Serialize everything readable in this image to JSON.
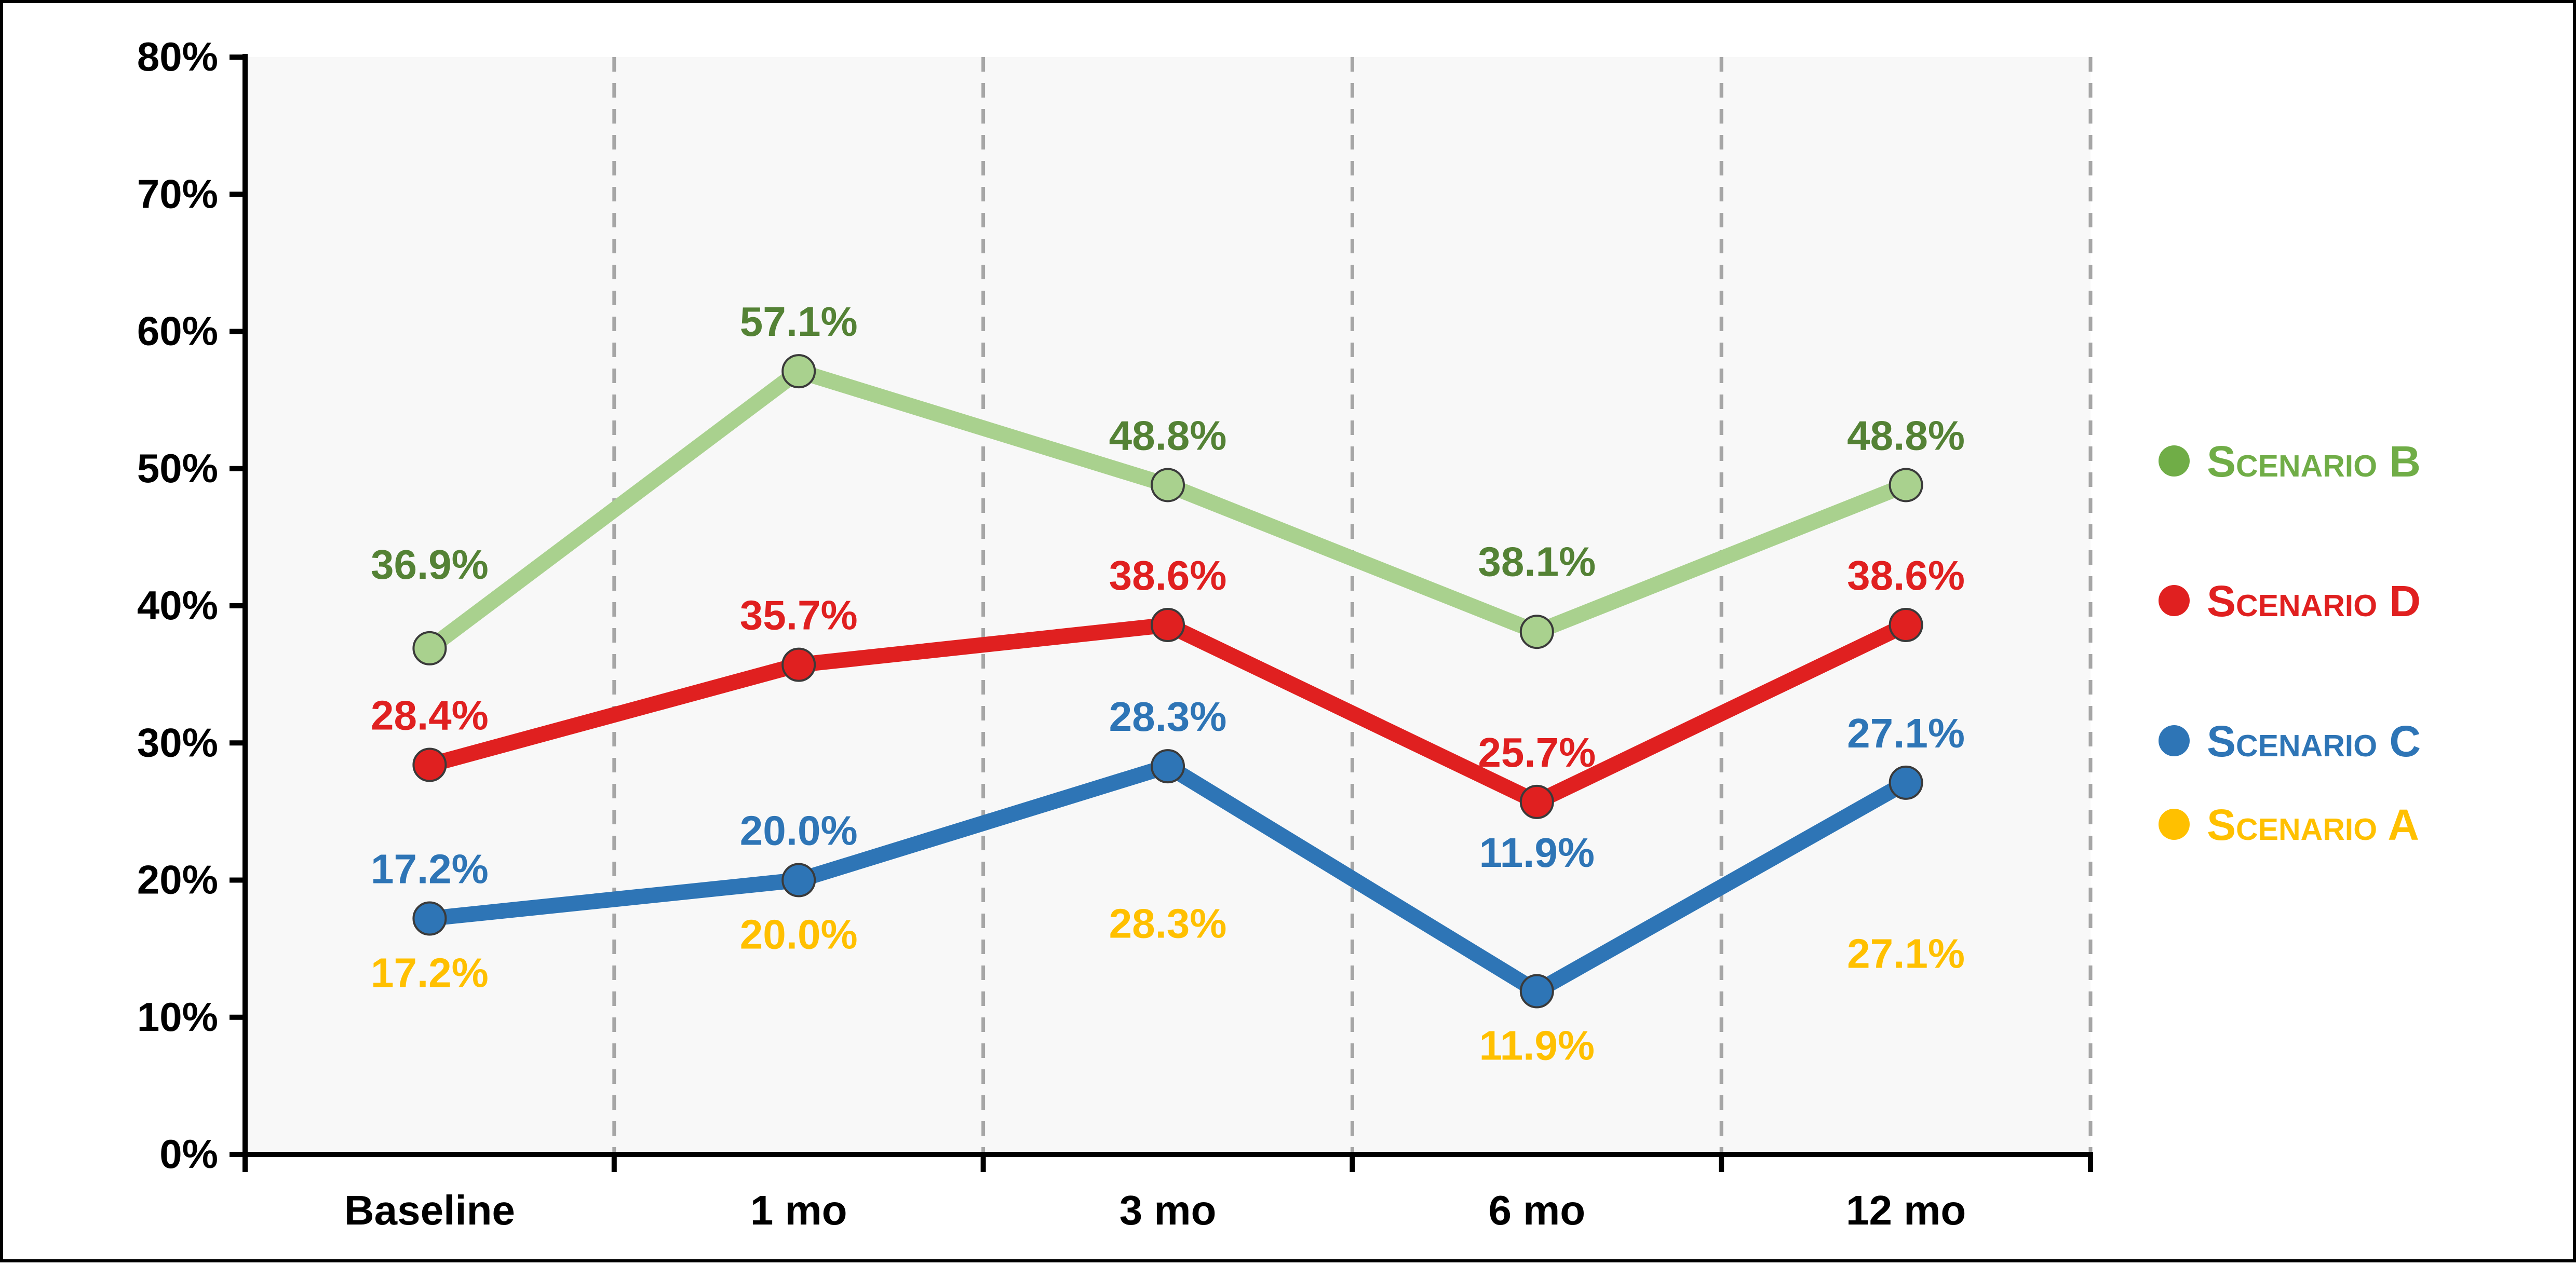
{
  "chart_data": {
    "type": "line",
    "categories": [
      "Baseline",
      "1 mo",
      "3 mo",
      "6 mo",
      "12 mo"
    ],
    "ylim": [
      0,
      80
    ],
    "yticks": [
      "0%",
      "10%",
      "20%",
      "30%",
      "40%",
      "50%",
      "60%",
      "70%",
      "80%"
    ],
    "grid": "vertical dashed lines between categories",
    "legend_position": "right",
    "series": [
      {
        "key": "B",
        "name": "Scenario B",
        "color": "#a9d18e",
        "label_color": "#548235",
        "marker": "#a9d18e",
        "values": [
          36.9,
          57.1,
          48.8,
          38.1,
          48.8
        ],
        "labels": [
          "36.9%",
          "57.1%",
          "48.8%",
          "38.1%",
          "48.8%"
        ],
        "label_side": [
          "above",
          "above",
          "above",
          "above",
          "above"
        ],
        "label_offset": [
          2.5,
          0,
          0,
          1.5,
          0
        ]
      },
      {
        "key": "D",
        "name": "Scenario D",
        "color": "#e02020",
        "label_color": "#e02020",
        "marker": "#e02020",
        "values": [
          28.4,
          35.7,
          38.6,
          25.7,
          38.6
        ],
        "labels": [
          "28.4%",
          "35.7%",
          "38.6%",
          "25.7%",
          "38.6%"
        ],
        "label_side": [
          "above",
          "above",
          "above",
          "above",
          "above"
        ],
        "label_offset": [
          0,
          0,
          0,
          0,
          0
        ]
      },
      {
        "key": "C",
        "name": "Scenario C",
        "color": "#2e75b6",
        "label_color": "#2e75b6",
        "marker": "#2e75b6",
        "values": [
          17.2,
          20.0,
          28.3,
          11.9,
          27.1
        ],
        "labels": [
          "17.2%",
          "20.0%",
          "28.3%",
          "11.9%",
          "27.1%"
        ],
        "label_side": [
          "above",
          "above",
          "above",
          "above",
          "above"
        ],
        "label_offset": [
          0,
          0,
          0,
          6.5,
          0
        ]
      },
      {
        "key": "A",
        "name": "Scenario A",
        "color": "#ffc000",
        "label_color": "#ffc000",
        "marker": null,
        "values": [
          17.2,
          20.0,
          28.3,
          11.9,
          27.1
        ],
        "labels": [
          "17.2%",
          "20.0%",
          "28.3%",
          "11.9%",
          "27.1%"
        ],
        "label_side": [
          "below",
          "below",
          "below",
          "below",
          "below"
        ],
        "label_offset": [
          0,
          0,
          7.5,
          0,
          8.5
        ]
      }
    ],
    "legend": [
      {
        "key": "B",
        "label": "Scenario B",
        "color": "#70ad47",
        "text_color": "#70ad47"
      },
      {
        "key": "D",
        "label": "Scenario D",
        "color": "#e02020",
        "text_color": "#e02020"
      },
      {
        "key": "C",
        "label": "Scenario C",
        "color": "#2e75b6",
        "text_color": "#2e75b6"
      },
      {
        "key": "A",
        "label": "Scenario A",
        "color": "#ffc000",
        "text_color": "#ffc000"
      }
    ]
  }
}
